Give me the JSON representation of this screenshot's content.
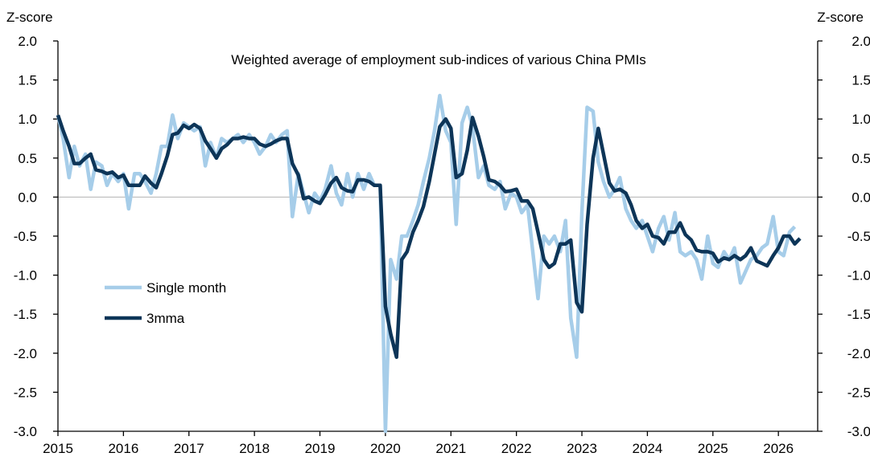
{
  "chart_data": {
    "type": "line",
    "title": "Weighted average of employment sub-indices of various China PMIs",
    "ylabel_left": "Z-score",
    "ylabel_right": "Z-score",
    "ylim": [
      -3.0,
      2.0
    ],
    "y_ticks": [
      "2.0",
      "1.5",
      "1.0",
      "0.5",
      "0.0",
      "-0.5",
      "-1.0",
      "-1.5",
      "-2.0",
      "-2.5",
      "-3.0"
    ],
    "xlim": [
      2015.0,
      2026.6
    ],
    "x_ticks": [
      "2015",
      "2016",
      "2017",
      "2018",
      "2019",
      "2020",
      "2021",
      "2022",
      "2023",
      "2024",
      "2025",
      "2026"
    ],
    "legend_placement": "lower-left",
    "grid": false,
    "zero_line": true,
    "series": [
      {
        "name": "Single month",
        "color": "#a6cde9",
        "points": [
          [
            2015.0,
            1.05
          ],
          [
            2015.08,
            0.75
          ],
          [
            2015.17,
            0.25
          ],
          [
            2015.25,
            0.65
          ],
          [
            2015.33,
            0.4
          ],
          [
            2015.42,
            0.55
          ],
          [
            2015.5,
            0.1
          ],
          [
            2015.58,
            0.45
          ],
          [
            2015.67,
            0.4
          ],
          [
            2015.75,
            0.15
          ],
          [
            2015.83,
            0.3
          ],
          [
            2015.92,
            0.2
          ],
          [
            2016.0,
            0.3
          ],
          [
            2016.08,
            -0.15
          ],
          [
            2016.17,
            0.3
          ],
          [
            2016.25,
            0.3
          ],
          [
            2016.33,
            0.2
          ],
          [
            2016.42,
            0.05
          ],
          [
            2016.5,
            0.3
          ],
          [
            2016.58,
            0.65
          ],
          [
            2016.67,
            0.65
          ],
          [
            2016.75,
            1.05
          ],
          [
            2016.83,
            0.75
          ],
          [
            2016.92,
            0.95
          ],
          [
            2017.0,
            0.9
          ],
          [
            2017.08,
            0.85
          ],
          [
            2017.17,
            0.9
          ],
          [
            2017.25,
            0.4
          ],
          [
            2017.33,
            0.7
          ],
          [
            2017.42,
            0.5
          ],
          [
            2017.5,
            0.75
          ],
          [
            2017.58,
            0.7
          ],
          [
            2017.67,
            0.75
          ],
          [
            2017.75,
            0.8
          ],
          [
            2017.83,
            0.7
          ],
          [
            2017.92,
            0.8
          ],
          [
            2018.0,
            0.7
          ],
          [
            2018.08,
            0.55
          ],
          [
            2018.17,
            0.65
          ],
          [
            2018.25,
            0.8
          ],
          [
            2018.33,
            0.7
          ],
          [
            2018.42,
            0.8
          ],
          [
            2018.5,
            0.85
          ],
          [
            2018.58,
            -0.25
          ],
          [
            2018.67,
            0.3
          ],
          [
            2018.75,
            0.05
          ],
          [
            2018.83,
            -0.2
          ],
          [
            2018.92,
            0.05
          ],
          [
            2019.0,
            -0.05
          ],
          [
            2019.08,
            0.1
          ],
          [
            2019.17,
            0.4
          ],
          [
            2019.25,
            0.05
          ],
          [
            2019.33,
            -0.1
          ],
          [
            2019.42,
            0.3
          ],
          [
            2019.5,
            0.0
          ],
          [
            2019.58,
            0.3
          ],
          [
            2019.67,
            0.1
          ],
          [
            2019.75,
            0.3
          ],
          [
            2019.83,
            0.15
          ],
          [
            2019.92,
            0.15
          ],
          [
            2020.0,
            -3.0
          ],
          [
            2020.08,
            -0.8
          ],
          [
            2020.17,
            -1.05
          ],
          [
            2020.25,
            -0.5
          ],
          [
            2020.33,
            -0.5
          ],
          [
            2020.42,
            -0.3
          ],
          [
            2020.5,
            -0.1
          ],
          [
            2020.58,
            0.2
          ],
          [
            2020.67,
            0.5
          ],
          [
            2020.75,
            0.85
          ],
          [
            2020.83,
            1.3
          ],
          [
            2020.92,
            0.85
          ],
          [
            2021.0,
            0.7
          ],
          [
            2021.08,
            -0.35
          ],
          [
            2021.17,
            0.95
          ],
          [
            2021.25,
            1.15
          ],
          [
            2021.33,
            0.9
          ],
          [
            2021.42,
            0.25
          ],
          [
            2021.5,
            0.4
          ],
          [
            2021.58,
            0.15
          ],
          [
            2021.67,
            0.1
          ],
          [
            2021.75,
            0.2
          ],
          [
            2021.83,
            -0.15
          ],
          [
            2021.92,
            0.05
          ],
          [
            2022.0,
            0.0
          ],
          [
            2022.08,
            -0.2
          ],
          [
            2022.17,
            -0.1
          ],
          [
            2022.25,
            -0.7
          ],
          [
            2022.33,
            -1.3
          ],
          [
            2022.42,
            -0.5
          ],
          [
            2022.5,
            -0.6
          ],
          [
            2022.58,
            -0.5
          ],
          [
            2022.67,
            -0.7
          ],
          [
            2022.75,
            -0.3
          ],
          [
            2022.83,
            -1.55
          ],
          [
            2022.92,
            -2.05
          ],
          [
            2023.0,
            -0.2
          ],
          [
            2023.08,
            1.15
          ],
          [
            2023.17,
            1.1
          ],
          [
            2023.25,
            0.45
          ],
          [
            2023.33,
            0.2
          ],
          [
            2023.42,
            0.0
          ],
          [
            2023.5,
            0.1
          ],
          [
            2023.58,
            0.25
          ],
          [
            2023.67,
            -0.15
          ],
          [
            2023.75,
            -0.3
          ],
          [
            2023.83,
            -0.4
          ],
          [
            2023.92,
            -0.3
          ],
          [
            2024.0,
            -0.5
          ],
          [
            2024.08,
            -0.7
          ],
          [
            2024.17,
            -0.4
          ],
          [
            2024.25,
            -0.25
          ],
          [
            2024.33,
            -0.55
          ],
          [
            2024.42,
            -0.2
          ],
          [
            2024.5,
            -0.7
          ],
          [
            2024.58,
            -0.75
          ],
          [
            2024.67,
            -0.7
          ],
          [
            2024.75,
            -0.8
          ],
          [
            2024.83,
            -1.05
          ],
          [
            2024.92,
            -0.5
          ],
          [
            2025.0,
            -0.85
          ],
          [
            2025.08,
            -0.9
          ],
          [
            2025.17,
            -0.7
          ],
          [
            2025.25,
            -0.8
          ],
          [
            2025.33,
            -0.65
          ],
          [
            2025.42,
            -1.1
          ],
          [
            2025.5,
            -0.95
          ],
          [
            2025.58,
            -0.8
          ],
          [
            2025.67,
            -0.75
          ],
          [
            2025.75,
            -0.65
          ],
          [
            2025.83,
            -0.6
          ],
          [
            2025.92,
            -0.25
          ],
          [
            2026.0,
            -0.7
          ],
          [
            2026.08,
            -0.75
          ],
          [
            2026.17,
            -0.45
          ],
          [
            2026.25,
            -0.38
          ]
        ]
      },
      {
        "name": "3mma",
        "color": "#0d3558",
        "points": [
          [
            2015.0,
            1.05
          ],
          [
            2015.08,
            0.85
          ],
          [
            2015.17,
            0.65
          ],
          [
            2015.25,
            0.43
          ],
          [
            2015.33,
            0.43
          ],
          [
            2015.42,
            0.5
          ],
          [
            2015.5,
            0.55
          ],
          [
            2015.58,
            0.35
          ],
          [
            2015.67,
            0.33
          ],
          [
            2015.75,
            0.3
          ],
          [
            2015.83,
            0.32
          ],
          [
            2015.92,
            0.25
          ],
          [
            2016.0,
            0.28
          ],
          [
            2016.08,
            0.15
          ],
          [
            2016.17,
            0.15
          ],
          [
            2016.25,
            0.15
          ],
          [
            2016.33,
            0.27
          ],
          [
            2016.42,
            0.18
          ],
          [
            2016.5,
            0.12
          ],
          [
            2016.58,
            0.3
          ],
          [
            2016.67,
            0.53
          ],
          [
            2016.75,
            0.8
          ],
          [
            2016.83,
            0.82
          ],
          [
            2016.92,
            0.92
          ],
          [
            2017.0,
            0.88
          ],
          [
            2017.08,
            0.93
          ],
          [
            2017.17,
            0.88
          ],
          [
            2017.25,
            0.72
          ],
          [
            2017.33,
            0.62
          ],
          [
            2017.42,
            0.5
          ],
          [
            2017.5,
            0.62
          ],
          [
            2017.58,
            0.67
          ],
          [
            2017.67,
            0.75
          ],
          [
            2017.75,
            0.75
          ],
          [
            2017.83,
            0.77
          ],
          [
            2017.92,
            0.75
          ],
          [
            2018.0,
            0.75
          ],
          [
            2018.08,
            0.68
          ],
          [
            2018.17,
            0.65
          ],
          [
            2018.25,
            0.68
          ],
          [
            2018.33,
            0.72
          ],
          [
            2018.42,
            0.75
          ],
          [
            2018.5,
            0.75
          ],
          [
            2018.58,
            0.43
          ],
          [
            2018.67,
            0.28
          ],
          [
            2018.75,
            -0.02
          ],
          [
            2018.83,
            0.0
          ],
          [
            2018.92,
            -0.05
          ],
          [
            2019.0,
            -0.08
          ],
          [
            2019.08,
            0.03
          ],
          [
            2019.17,
            0.18
          ],
          [
            2019.25,
            0.25
          ],
          [
            2019.33,
            0.12
          ],
          [
            2019.42,
            0.08
          ],
          [
            2019.5,
            0.07
          ],
          [
            2019.58,
            0.22
          ],
          [
            2019.67,
            0.22
          ],
          [
            2019.75,
            0.2
          ],
          [
            2019.83,
            0.15
          ],
          [
            2019.92,
            0.15
          ],
          [
            2020.0,
            -1.4
          ],
          [
            2020.08,
            -1.75
          ],
          [
            2020.17,
            -2.05
          ],
          [
            2020.25,
            -0.8
          ],
          [
            2020.33,
            -0.7
          ],
          [
            2020.42,
            -0.45
          ],
          [
            2020.5,
            -0.3
          ],
          [
            2020.58,
            -0.12
          ],
          [
            2020.67,
            0.2
          ],
          [
            2020.75,
            0.55
          ],
          [
            2020.83,
            0.9
          ],
          [
            2020.92,
            1.0
          ],
          [
            2021.0,
            0.88
          ],
          [
            2021.08,
            0.25
          ],
          [
            2021.17,
            0.3
          ],
          [
            2021.25,
            0.6
          ],
          [
            2021.33,
            1.02
          ],
          [
            2021.42,
            0.78
          ],
          [
            2021.5,
            0.52
          ],
          [
            2021.58,
            0.22
          ],
          [
            2021.67,
            0.2
          ],
          [
            2021.75,
            0.15
          ],
          [
            2021.83,
            0.07
          ],
          [
            2021.92,
            0.08
          ],
          [
            2022.0,
            0.1
          ],
          [
            2022.08,
            -0.05
          ],
          [
            2022.17,
            -0.05
          ],
          [
            2022.25,
            -0.15
          ],
          [
            2022.33,
            -0.45
          ],
          [
            2022.42,
            -0.8
          ],
          [
            2022.5,
            -0.9
          ],
          [
            2022.58,
            -0.85
          ],
          [
            2022.67,
            -0.6
          ],
          [
            2022.75,
            -0.6
          ],
          [
            2022.83,
            -0.55
          ],
          [
            2022.92,
            -1.35
          ],
          [
            2023.0,
            -1.47
          ],
          [
            2023.08,
            -0.35
          ],
          [
            2023.17,
            0.5
          ],
          [
            2023.25,
            0.88
          ],
          [
            2023.33,
            0.55
          ],
          [
            2023.42,
            0.18
          ],
          [
            2023.5,
            0.08
          ],
          [
            2023.58,
            0.1
          ],
          [
            2023.67,
            0.05
          ],
          [
            2023.75,
            -0.1
          ],
          [
            2023.83,
            -0.3
          ],
          [
            2023.92,
            -0.4
          ],
          [
            2024.0,
            -0.35
          ],
          [
            2024.08,
            -0.5
          ],
          [
            2024.17,
            -0.52
          ],
          [
            2024.25,
            -0.6
          ],
          [
            2024.33,
            -0.45
          ],
          [
            2024.42,
            -0.45
          ],
          [
            2024.5,
            -0.33
          ],
          [
            2024.58,
            -0.48
          ],
          [
            2024.67,
            -0.55
          ],
          [
            2024.75,
            -0.68
          ],
          [
            2024.83,
            -0.7
          ],
          [
            2024.92,
            -0.7
          ],
          [
            2025.0,
            -0.72
          ],
          [
            2025.08,
            -0.83
          ],
          [
            2025.17,
            -0.78
          ],
          [
            2025.25,
            -0.8
          ],
          [
            2025.33,
            -0.75
          ],
          [
            2025.42,
            -0.8
          ],
          [
            2025.5,
            -0.75
          ],
          [
            2025.58,
            -0.65
          ],
          [
            2025.67,
            -0.82
          ],
          [
            2025.75,
            -0.85
          ],
          [
            2025.83,
            -0.88
          ],
          [
            2025.92,
            -0.75
          ],
          [
            2026.0,
            -0.65
          ],
          [
            2026.08,
            -0.5
          ],
          [
            2026.17,
            -0.5
          ],
          [
            2026.25,
            -0.6
          ],
          [
            2026.33,
            -0.53
          ]
        ]
      }
    ]
  }
}
